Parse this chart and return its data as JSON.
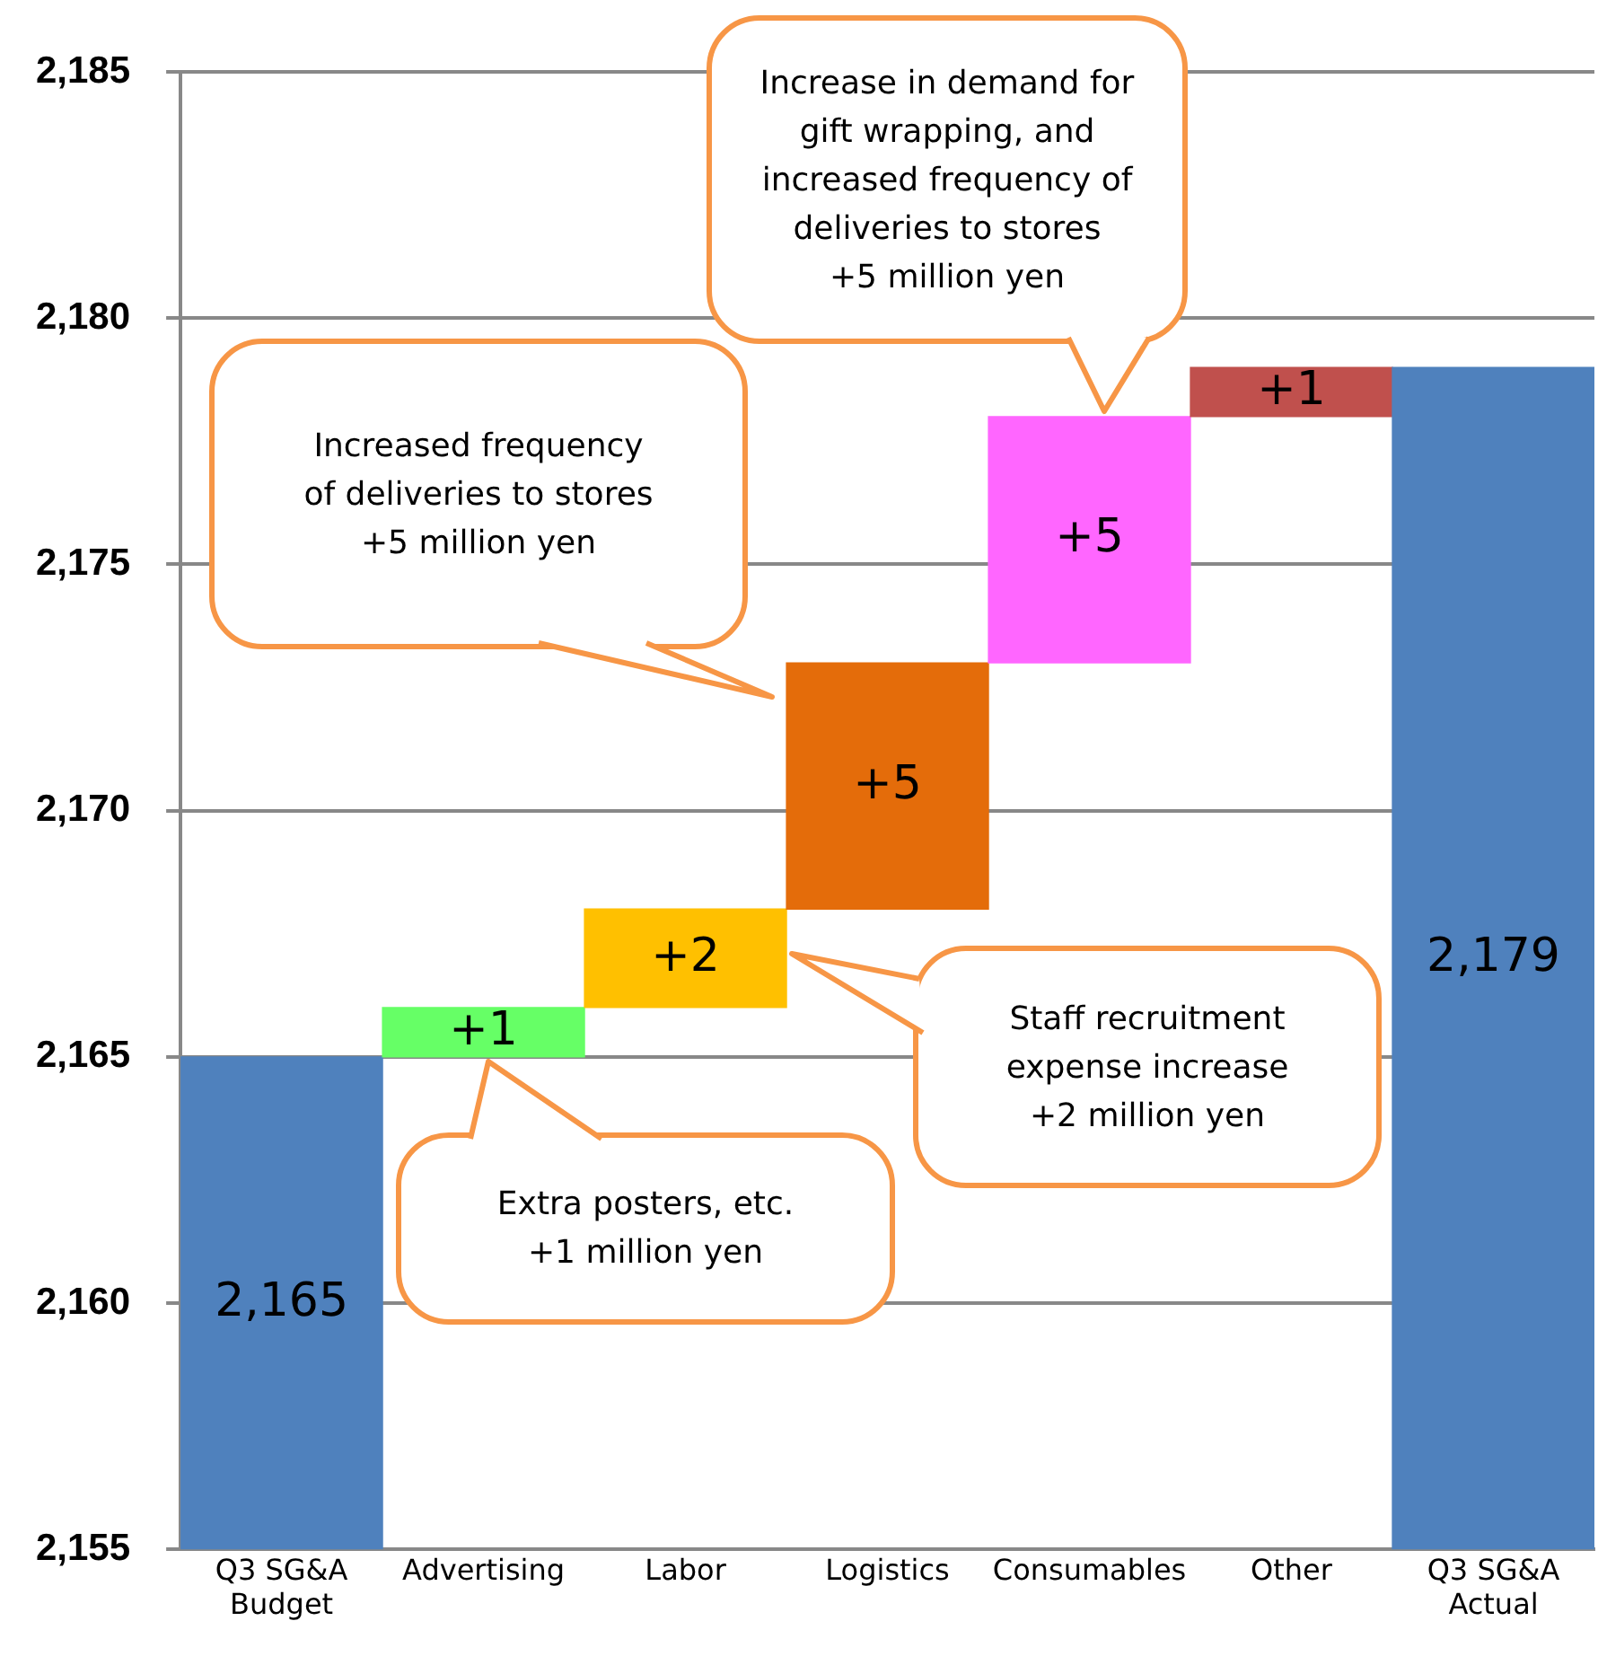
{
  "chart_data": {
    "type": "bar",
    "categories": [
      "Q3 SG&A Budget",
      "Advertising",
      "Labor",
      "Logistics",
      "Consumables",
      "Other",
      "Q3 SG&A Actual"
    ],
    "values": [
      2165,
      1,
      2,
      5,
      5,
      1,
      2179
    ],
    "base": [
      null,
      2165,
      2166,
      2168,
      2173,
      2178,
      null
    ],
    "colors": [
      "#4f81bd",
      "#66ff66",
      "#ffc000",
      "#e46c0a",
      "#ff66ff",
      "#c0504d",
      "#4f81bd"
    ],
    "value_labels": [
      "2,165",
      "+1",
      "+2",
      "+5",
      "+5",
      "+1",
      "2,179"
    ],
    "ylim": [
      2155,
      2185
    ],
    "yticks": [
      {
        "value": 2155,
        "label": "2,155"
      },
      {
        "value": 2160,
        "label": "2,160"
      },
      {
        "value": 2165,
        "label": "2,165"
      },
      {
        "value": 2170,
        "label": "2,170"
      },
      {
        "value": 2175,
        "label": "2,175"
      },
      {
        "value": 2180,
        "label": "2,180"
      },
      {
        "value": 2185,
        "label": "2,185"
      }
    ],
    "grid": "y",
    "legend": false,
    "annotations": [
      "Extra posters, etc.\n+1 million yen",
      "Staff recruitment\nexpense increase\n+2 million yen",
      "Increased frequency\nof deliveries to stores\n+5 million yen",
      "Increase in demand for\ngift wrapping, and\nincreased frequency of\ndeliveries to stores\n+5 million yen"
    ]
  }
}
